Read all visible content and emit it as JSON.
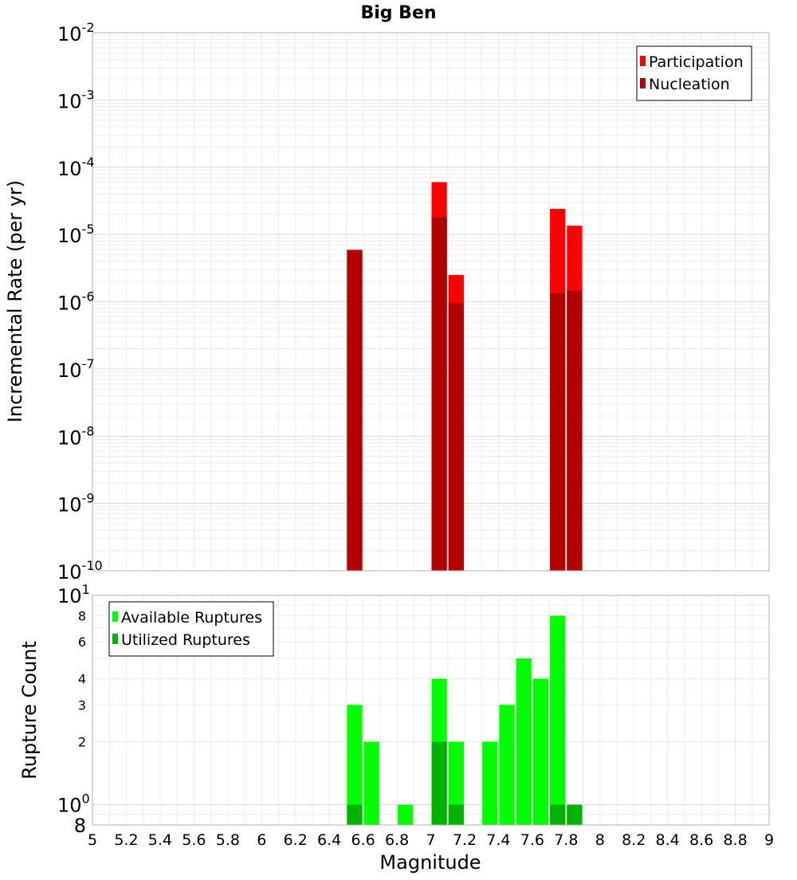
{
  "title": "Big Ben",
  "chart_data": [
    {
      "type": "bar",
      "panel": "top",
      "title": "Big Ben",
      "xlabel": "",
      "ylabel": "Incremental Rate (per yr)",
      "y_scale": "log",
      "ylim": [
        1e-10,
        0.01
      ],
      "xlim": [
        5,
        9
      ],
      "grid": true,
      "legend_position": "top-right",
      "y_tick_labels": [
        {
          "base": "10",
          "exp": "-10"
        },
        {
          "base": "10",
          "exp": "-9"
        },
        {
          "base": "10",
          "exp": "-8"
        },
        {
          "base": "10",
          "exp": "-7"
        },
        {
          "base": "10",
          "exp": "-6"
        },
        {
          "base": "10",
          "exp": "-5"
        },
        {
          "base": "10",
          "exp": "-4"
        },
        {
          "base": "10",
          "exp": "-3"
        },
        {
          "base": "10",
          "exp": "-2"
        }
      ],
      "bar_width": 0.1,
      "series": [
        {
          "name": "Participation",
          "color": "#ff0000",
          "x": [
            6.55,
            7.05,
            7.15,
            7.75,
            7.85
          ],
          "values": [
            5.9e-06,
            6e-05,
            2.5e-06,
            2.4e-05,
            1.35e-05
          ]
        },
        {
          "name": "Nucleation",
          "color": "#b30000",
          "x": [
            6.55,
            7.05,
            7.15,
            7.75,
            7.85
          ],
          "values": [
            5.9e-06,
            1.8e-05,
            9.5e-07,
            1.35e-06,
            1.45e-06
          ]
        }
      ]
    },
    {
      "type": "bar",
      "panel": "bottom",
      "xlabel": "Magnitude",
      "ylabel": "Rupture Count",
      "y_scale": "log",
      "ylim": [
        0.8,
        10
      ],
      "xlim": [
        5,
        9
      ],
      "grid": true,
      "legend_position": "top-left",
      "x_ticks": [
        "5",
        "5.2",
        "5.4",
        "5.6",
        "5.8",
        "6",
        "6.2",
        "6.4",
        "6.6",
        "6.8",
        "7",
        "7.2",
        "7.4",
        "7.6",
        "7.8",
        "8",
        "8.2",
        "8.4",
        "8.6",
        "8.8",
        "9"
      ],
      "y_tick_labels_small": [
        {
          "label": "8",
          "value": 8
        },
        {
          "label": "6",
          "value": 6
        },
        {
          "label": "4",
          "value": 4
        },
        {
          "label": "3",
          "value": 3
        },
        {
          "label": "2",
          "value": 2
        }
      ],
      "y_tick_labels_major": [
        {
          "base": "10",
          "exp": "1",
          "value": 10
        },
        {
          "base": "10",
          "exp": "0",
          "value": 1
        },
        {
          "base": "8",
          "exp": "",
          "value": 0.8
        }
      ],
      "bar_width": 0.1,
      "series": [
        {
          "name": "Available Ruptures",
          "color": "#00ff00",
          "x": [
            6.55,
            6.65,
            6.85,
            7.05,
            7.15,
            7.35,
            7.45,
            7.55,
            7.65,
            7.75,
            7.85
          ],
          "values": [
            3,
            2,
            1,
            4,
            2,
            2,
            3,
            5,
            4,
            8,
            1
          ]
        },
        {
          "name": "Utilized Ruptures",
          "color": "#00b300",
          "x": [
            6.55,
            7.05,
            7.15,
            7.75,
            7.85
          ],
          "values": [
            1,
            2,
            1,
            1,
            1
          ]
        }
      ]
    }
  ]
}
